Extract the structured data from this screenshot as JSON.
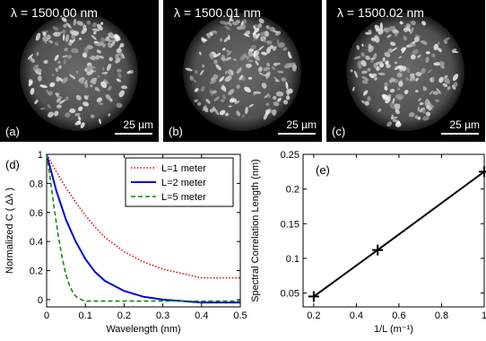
{
  "images": [
    {
      "label": "(a)",
      "wavelength": "λ = 1500.00 nm",
      "scale": "25 µm"
    },
    {
      "label": "(b)",
      "wavelength": "λ = 1500.01 nm",
      "scale": "25 µm"
    },
    {
      "label": "(c)",
      "wavelength": "λ = 1500.02 nm",
      "scale": "25 µm"
    }
  ],
  "chart_data": [
    {
      "panel": "(d)",
      "type": "line",
      "xlabel": "Wavelength (nm)",
      "ylabel": "Normalized C ( Δλ )",
      "xlim": [
        0,
        0.5
      ],
      "ylim": [
        -0.05,
        1
      ],
      "xticks": [
        "0",
        "0.1",
        "0.2",
        "0.3",
        "0.4",
        "0.5"
      ],
      "yticks": [
        "0",
        "0.2",
        "0.4",
        "0.6",
        "0.8",
        "1"
      ],
      "legend": "top-right",
      "series": [
        {
          "name": "L=1 meter",
          "color": "#dd0000",
          "style": "dotted",
          "x": [
            0,
            0.025,
            0.05,
            0.075,
            0.1,
            0.125,
            0.15,
            0.2,
            0.25,
            0.3,
            0.35,
            0.4,
            0.45,
            0.5
          ],
          "y": [
            1,
            0.88,
            0.77,
            0.67,
            0.58,
            0.5,
            0.43,
            0.33,
            0.26,
            0.21,
            0.18,
            0.15,
            0.15,
            0.15
          ]
        },
        {
          "name": "L=2 meter",
          "color": "#0000dd",
          "style": "solid",
          "x": [
            0,
            0.025,
            0.05,
            0.075,
            0.1,
            0.125,
            0.15,
            0.2,
            0.25,
            0.3,
            0.35,
            0.4,
            0.45,
            0.5
          ],
          "y": [
            1,
            0.75,
            0.55,
            0.4,
            0.28,
            0.19,
            0.13,
            0.06,
            0.02,
            0.0,
            -0.01,
            -0.02,
            -0.02,
            -0.02
          ]
        },
        {
          "name": "L=5 meter",
          "color": "#008800",
          "style": "dashed",
          "x": [
            0,
            0.01,
            0.02,
            0.03,
            0.04,
            0.05,
            0.06,
            0.07,
            0.08,
            0.1,
            0.15,
            0.2,
            0.3,
            0.4,
            0.5
          ],
          "y": [
            1,
            0.82,
            0.62,
            0.44,
            0.29,
            0.17,
            0.09,
            0.04,
            0.01,
            -0.01,
            -0.01,
            -0.01,
            -0.01,
            -0.01,
            -0.01
          ]
        }
      ]
    },
    {
      "panel": "(e)",
      "type": "line",
      "xlabel": "1/L (m⁻¹)",
      "ylabel": "Spectral Correlation Length (nm)",
      "xlim": [
        0.15,
        1
      ],
      "ylim": [
        0.03,
        0.25
      ],
      "xticks": [
        "0.2",
        "0.4",
        "0.6",
        "0.8",
        "1"
      ],
      "yticks": [
        "0.05",
        "0.1",
        "0.15",
        "0.2",
        "0.25"
      ],
      "series": [
        {
          "name": "",
          "color": "#000000",
          "style": "solid",
          "marker": "+",
          "x": [
            0.2,
            0.5,
            1
          ],
          "y": [
            0.045,
            0.112,
            0.225
          ]
        }
      ]
    }
  ]
}
